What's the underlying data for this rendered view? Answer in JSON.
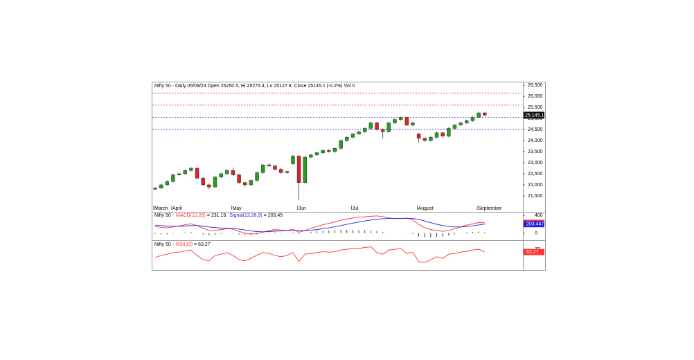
{
  "chart_data": [
    {
      "type": "candlestick",
      "title": "Nifty 50 - Daily 05/09/24 Open 25250.5, Hi 25275.4, Lo 25127.8, Close 25145.1 (-0.2%) Vol 0",
      "categories": [
        "March",
        null,
        null,
        "April",
        null,
        null,
        null,
        null,
        null,
        null,
        null,
        null,
        null,
        "May",
        null,
        null,
        null,
        null,
        null,
        null,
        null,
        null,
        null,
        null,
        "Jun",
        null,
        null,
        null,
        null,
        null,
        null,
        null,
        null,
        "Jul",
        null,
        null,
        null,
        null,
        null,
        null,
        null,
        null,
        null,
        null,
        "August",
        null,
        null,
        null,
        null,
        null,
        null,
        null,
        null,
        null,
        "September",
        null
      ],
      "ohlc": [
        [
          21800,
          21900,
          21750,
          21850
        ],
        [
          21850,
          22050,
          21820,
          22000
        ],
        [
          22000,
          22200,
          21950,
          22150
        ],
        [
          22150,
          22500,
          22100,
          22450
        ],
        [
          22450,
          22550,
          22380,
          22500
        ],
        [
          22500,
          22700,
          22450,
          22650
        ],
        [
          22650,
          22800,
          22600,
          22750
        ],
        [
          22750,
          22780,
          22250,
          22300
        ],
        [
          22300,
          22350,
          21950,
          22000
        ],
        [
          22000,
          22050,
          21800,
          21900
        ],
        [
          21900,
          22400,
          21880,
          22350
        ],
        [
          22350,
          22550,
          22300,
          22500
        ],
        [
          22500,
          22700,
          22450,
          22650
        ],
        [
          22650,
          22780,
          22400,
          22450
        ],
        [
          22450,
          22500,
          22050,
          22100
        ],
        [
          22100,
          22150,
          21900,
          22000
        ],
        [
          22000,
          22250,
          21950,
          22200
        ],
        [
          22200,
          22600,
          22150,
          22550
        ],
        [
          22550,
          22950,
          22500,
          22900
        ],
        [
          22900,
          23000,
          22800,
          22850
        ],
        [
          22850,
          22900,
          22650,
          22700
        ],
        [
          22700,
          22750,
          22500,
          22550
        ],
        [
          22550,
          22650,
          22500,
          22600
        ],
        [
          22950,
          23350,
          22900,
          23300
        ],
        [
          23300,
          23350,
          21300,
          22100
        ],
        [
          22100,
          23300,
          22050,
          23250
        ],
        [
          23250,
          23400,
          23200,
          23350
        ],
        [
          23350,
          23500,
          23300,
          23450
        ],
        [
          23450,
          23600,
          23400,
          23550
        ],
        [
          23550,
          23620,
          23450,
          23500
        ],
        [
          23500,
          23700,
          23450,
          23650
        ],
        [
          23650,
          24050,
          23600,
          24000
        ],
        [
          24000,
          24200,
          23950,
          24150
        ],
        [
          24150,
          24350,
          24100,
          24300
        ],
        [
          24300,
          24450,
          24250,
          24400
        ],
        [
          24400,
          24600,
          24350,
          24550
        ],
        [
          24550,
          24850,
          24500,
          24800
        ],
        [
          24800,
          24850,
          24450,
          24500
        ],
        [
          24500,
          24550,
          24100,
          24400
        ],
        [
          24400,
          24850,
          24350,
          24800
        ],
        [
          24800,
          25000,
          24750,
          24950
        ],
        [
          24950,
          25080,
          24900,
          25050
        ],
        [
          25050,
          25080,
          24650,
          24700
        ],
        [
          24700,
          24850,
          24650,
          24800
        ],
        [
          24300,
          24350,
          23900,
          24100
        ],
        [
          24100,
          24150,
          23950,
          24000
        ],
        [
          24000,
          24200,
          23950,
          24150
        ],
        [
          24150,
          24400,
          24100,
          24350
        ],
        [
          24350,
          24400,
          24150,
          24200
        ],
        [
          24200,
          24600,
          24150,
          24550
        ],
        [
          24550,
          24750,
          24500,
          24700
        ],
        [
          24700,
          24850,
          24650,
          24800
        ],
        [
          24800,
          24950,
          24750,
          24900
        ],
        [
          24900,
          25100,
          24850,
          25050
        ],
        [
          25050,
          25300,
          25000,
          25250
        ],
        [
          25250.5,
          25275.4,
          25127.8,
          25145.1
        ]
      ],
      "up_color": "#22a022",
      "down_color": "#dd2222",
      "ylim": [
        21060,
        26660
      ],
      "yticks": [
        {
          "value": 21500,
          "label": "21,500"
        },
        {
          "value": 22000,
          "label": "22,000"
        },
        {
          "value": 22500,
          "label": "22,500"
        },
        {
          "value": 23000,
          "label": "23,000"
        },
        {
          "value": 23500,
          "label": "23,500"
        },
        {
          "value": 24000,
          "label": "24,000"
        },
        {
          "value": 24500,
          "label": "24,500"
        },
        {
          "value": 25000,
          "label": "25,000"
        },
        {
          "value": 25500,
          "label": "25,500"
        },
        {
          "value": 26000,
          "label": "26,000"
        },
        {
          "value": 26500,
          "label": "26,500"
        }
      ],
      "hlines": [
        {
          "value": 26150,
          "color": "#e03030"
        },
        {
          "value": 25600,
          "color": "#e03030"
        },
        {
          "value": 25050,
          "color": "#3030d0"
        },
        {
          "value": 24500,
          "color": "#3030d0"
        }
      ],
      "last_price": {
        "value": 25145.1,
        "label": "25,145.1"
      }
    },
    {
      "type": "line",
      "title": "Nifty 50 -",
      "series": [
        {
          "name": "MACD(12,26)",
          "color": "#ff3030",
          "title_value": "= 231.19,",
          "values": [
            150,
            130,
            120,
            140,
            160,
            190,
            210,
            170,
            110,
            60,
            60,
            80,
            100,
            90,
            40,
            0,
            -20,
            -10,
            20,
            60,
            80,
            70,
            60,
            90,
            20,
            60,
            110,
            150,
            190,
            220,
            250,
            290,
            320,
            340,
            360,
            370,
            380,
            390,
            370,
            340,
            330,
            330,
            340,
            300,
            200,
            120,
            80,
            60,
            40,
            60,
            100,
            140,
            180,
            210,
            240,
            231.19
          ],
          "end_label": {
            "value": 231.19,
            "label": "231.19"
          }
        },
        {
          "name": "Signal(12,26,9)",
          "color": "#2020e0",
          "title_value": "= 203.45",
          "values": [
            180,
            170,
            160,
            155,
            155,
            160,
            170,
            170,
            160,
            140,
            125,
            115,
            110,
            105,
            90,
            70,
            50,
            35,
            30,
            35,
            45,
            50,
            55,
            60,
            55,
            55,
            65,
            80,
            100,
            120,
            145,
            170,
            200,
            225,
            250,
            275,
            295,
            315,
            325,
            330,
            330,
            330,
            335,
            330,
            310,
            275,
            235,
            200,
            170,
            150,
            140,
            140,
            150,
            165,
            185,
            203.45
          ],
          "end_label": {
            "value": 203.447,
            "label": "203.447"
          }
        }
      ],
      "histogram": {
        "color": "#000000",
        "values": [
          -20,
          -25,
          -25,
          -10,
          3,
          20,
          25,
          0,
          -30,
          -50,
          -40,
          -20,
          -6,
          -10,
          -30,
          -45,
          -45,
          -30,
          -6,
          15,
          20,
          12,
          3,
          18,
          -20,
          3,
          28,
          45,
          55,
          60,
          65,
          75,
          75,
          70,
          65,
          60,
          55,
          45,
          28,
          6,
          0,
          0,
          3,
          -20,
          -70,
          -95,
          -95,
          -85,
          -80,
          -55,
          -25,
          0,
          18,
          28,
          35,
          18
        ]
      },
      "ylim": [
        -160,
        480
      ],
      "yticks": [
        0,
        400
      ]
    },
    {
      "type": "line",
      "title": "Nifty 50 -",
      "series": [
        {
          "name": "RSI(15)",
          "color": "#ff3030",
          "title_value": "= 63.27",
          "values": [
            50,
            55,
            58,
            62,
            63,
            66,
            68,
            55,
            45,
            42,
            55,
            58,
            62,
            55,
            45,
            42,
            48,
            56,
            62,
            60,
            55,
            52,
            55,
            62,
            40,
            58,
            60,
            62,
            64,
            63,
            64,
            68,
            70,
            72,
            72,
            74,
            76,
            62,
            58,
            68,
            70,
            72,
            60,
            63,
            40,
            38,
            45,
            52,
            48,
            58,
            60,
            63,
            65,
            68,
            70,
            63.27
          ],
          "end_label": {
            "value": 63.27,
            "label": "63.27"
          }
        }
      ],
      "ylim": [
        20,
        90
      ],
      "yticks": [
        70
      ]
    }
  ]
}
